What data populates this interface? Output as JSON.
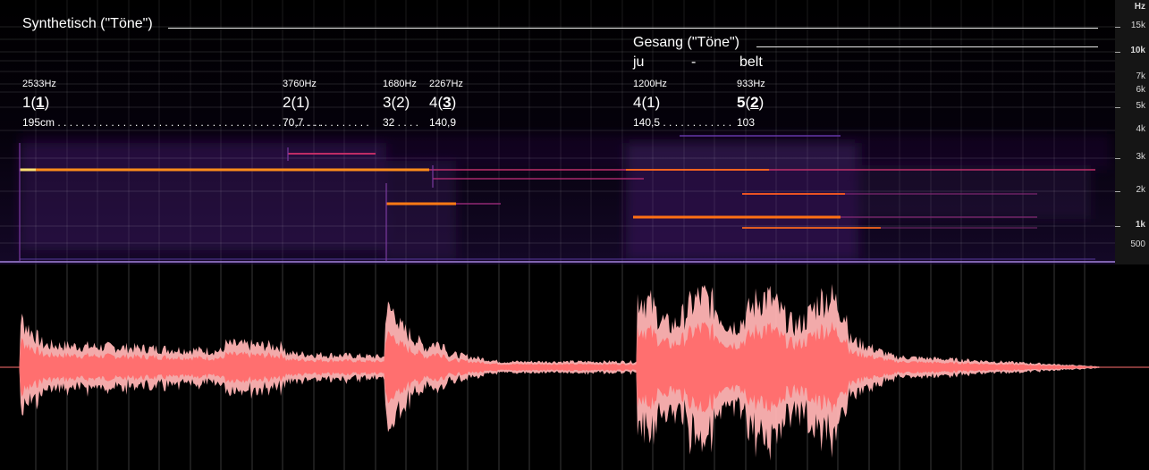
{
  "synth": {
    "title": "Synthetisch (\"Töne\")"
  },
  "song": {
    "title": "Gesang (\"Töne\")",
    "syl1": "ju",
    "syl2": "-",
    "syl3": "belt"
  },
  "freq_labels": [
    "2533Hz",
    "3760Hz",
    "1680Hz",
    "2267Hz",
    "1200Hz",
    "933Hz"
  ],
  "tones": {
    "t1": {
      "a": "1(",
      "b": "1",
      "c": ")"
    },
    "t2": "2(1)",
    "t3": "3(2)",
    "t4": {
      "a": "4(",
      "b": "3",
      "c": ")"
    },
    "t5": "4(1)",
    "t6": {
      "a": "5",
      "b": "(",
      "c": "2",
      "d": ")"
    }
  },
  "distances": {
    "d1": "195cm . . . . . . . . . . . . . . . . . . . . . . . . . . . . . . . . . . . . . . . . . . . . .",
    "d2": "70,7 . . . . . . . . . . .",
    "d3": "32 . . . .",
    "d4": "140,9",
    "d5": "140,5 . . . . . . . . . . . .",
    "d6": "103"
  },
  "axis": {
    "unit": "Hz",
    "ticks": [
      "15k",
      "10k",
      "7k",
      "6k",
      "5k",
      "4k",
      "3k",
      "2k",
      "1k",
      "500"
    ]
  },
  "colors": {
    "waveform": "#ff6f6f",
    "waveform_light": "#ffb0b0",
    "spectro_bg": "#07020f",
    "tone": "#ff9a1e"
  }
}
